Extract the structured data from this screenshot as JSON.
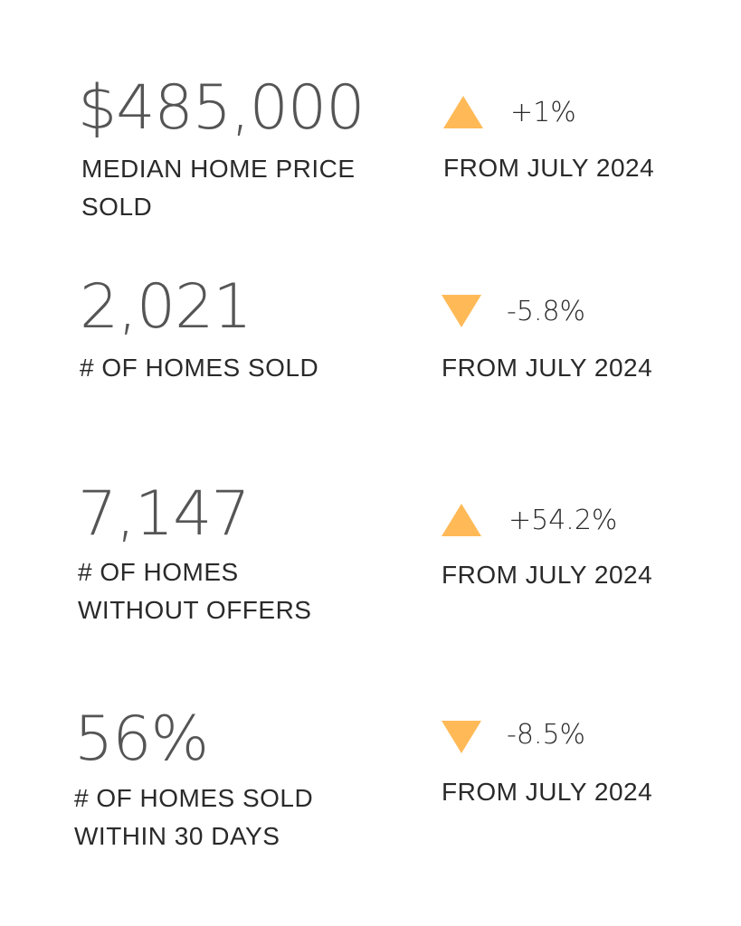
{
  "stats": [
    {
      "value": "$485,000",
      "label_lines": [
        "MEDIAN HOME PRICE",
        "SOLD"
      ],
      "direction": "up",
      "arrow_icon": "triangle-up-icon",
      "change": "+1%",
      "comparison": "FROM JULY 2024"
    },
    {
      "value": "2,021",
      "label_lines": [
        "# OF HOMES SOLD"
      ],
      "direction": "down",
      "arrow_icon": "triangle-down-icon",
      "change": "-5.8%",
      "comparison": "FROM JULY 2024"
    },
    {
      "value": "7,147",
      "label_lines": [
        "# OF HOMES",
        "WITHOUT OFFERS"
      ],
      "direction": "up",
      "arrow_icon": "triangle-up-icon",
      "change": "+54.2%",
      "comparison": "FROM JULY 2024"
    },
    {
      "value": "56%",
      "label_lines": [
        "# OF HOMES SOLD",
        "WITHIN 30 DAYS"
      ],
      "direction": "down",
      "arrow_icon": "triangle-down-icon",
      "change": "-8.5%",
      "comparison": "FROM JULY 2024"
    }
  ],
  "colors": {
    "arrow": "#FFBA57",
    "value_text": "#555555",
    "label_text": "#2a2a2a",
    "background": "#ffffff"
  }
}
